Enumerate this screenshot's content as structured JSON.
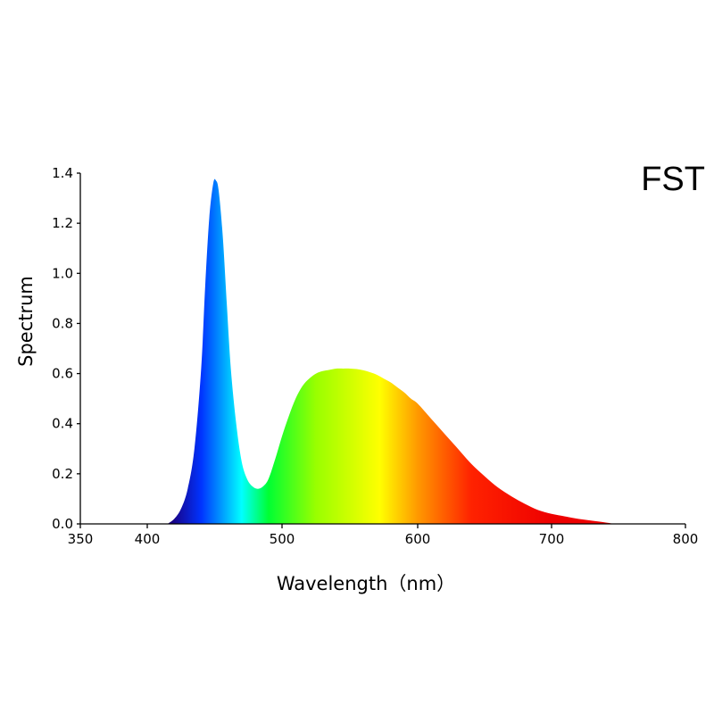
{
  "chart_data": {
    "type": "area",
    "title": "",
    "corner_label": "FST",
    "xlabel": "Wavelength（nm）",
    "ylabel": "Spectrum",
    "xlim": [
      350,
      800
    ],
    "ylim": [
      0,
      1.4
    ],
    "x_ticks": [
      "350",
      "400",
      "500",
      "600",
      "700",
      "800"
    ],
    "y_ticks": [
      "0.0",
      "0.2",
      "0.4",
      "0.6",
      "0.8",
      "1.0",
      "1.2",
      "1.4"
    ],
    "grid": false,
    "legend": "none",
    "fill": "visible-spectrum gradient",
    "series": [
      {
        "x": [
          415,
          420,
          425,
          430,
          435,
          440,
          443,
          446,
          449,
          451,
          453,
          456,
          459,
          462,
          466,
          470,
          474,
          478,
          482,
          486,
          490,
          495,
          500,
          505,
          510,
          515,
          520,
          525,
          530,
          535,
          540,
          545,
          550,
          555,
          560,
          565,
          570,
          575,
          580,
          585,
          590,
          595,
          600,
          610,
          620,
          630,
          640,
          650,
          660,
          670,
          680,
          690,
          700,
          710,
          720,
          730,
          740,
          745
        ],
        "y": [
          0.0,
          0.02,
          0.06,
          0.14,
          0.3,
          0.62,
          0.95,
          1.22,
          1.36,
          1.37,
          1.33,
          1.15,
          0.88,
          0.62,
          0.4,
          0.25,
          0.18,
          0.15,
          0.14,
          0.15,
          0.18,
          0.26,
          0.35,
          0.43,
          0.5,
          0.55,
          0.58,
          0.6,
          0.61,
          0.615,
          0.62,
          0.62,
          0.62,
          0.618,
          0.613,
          0.605,
          0.595,
          0.58,
          0.565,
          0.545,
          0.525,
          0.5,
          0.48,
          0.42,
          0.36,
          0.3,
          0.24,
          0.19,
          0.145,
          0.11,
          0.08,
          0.055,
          0.04,
          0.03,
          0.02,
          0.013,
          0.006,
          0.002
        ]
      }
    ]
  },
  "colors": {
    "axis": "#000000",
    "spectrum_stops": [
      "#1a0080",
      "#0033ff",
      "#0099ff",
      "#00ffff",
      "#00ff33",
      "#99ff00",
      "#ffff00",
      "#ff9900",
      "#ff2200",
      "#ee0000"
    ]
  }
}
